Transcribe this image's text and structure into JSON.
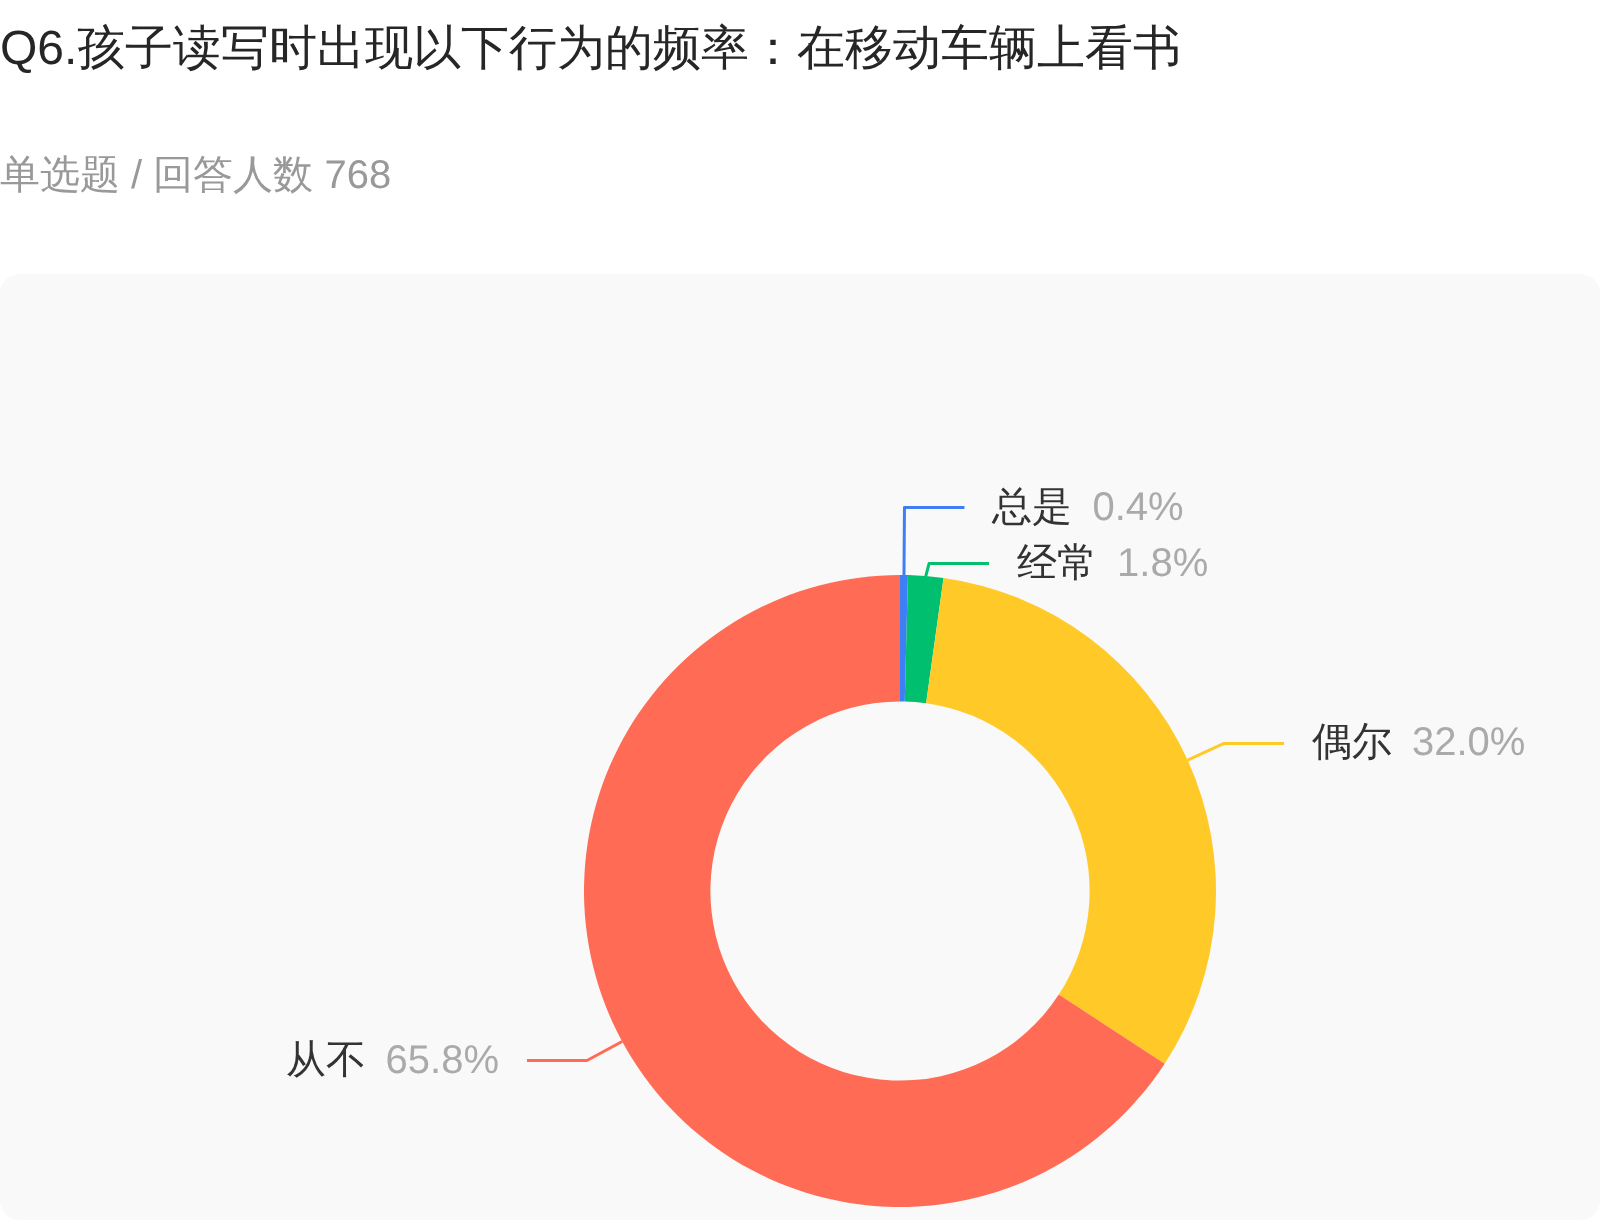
{
  "chart_data": {
    "type": "donut",
    "title": "Q6.孩子读写时出现以下行为的频率：在移动车辆上看书",
    "subtitle": "单选题 / 回答人数 768",
    "categories": [
      "总是",
      "经常",
      "偶尔",
      "从不"
    ],
    "values": [
      0.4,
      1.8,
      32.0,
      65.8
    ],
    "colors": [
      "#3f7ff5",
      "#00bf6f",
      "#ffca28",
      "#ff6b55"
    ],
    "value_labels": [
      "0.4%",
      "1.8%",
      "32.0%",
      "65.8%"
    ]
  }
}
